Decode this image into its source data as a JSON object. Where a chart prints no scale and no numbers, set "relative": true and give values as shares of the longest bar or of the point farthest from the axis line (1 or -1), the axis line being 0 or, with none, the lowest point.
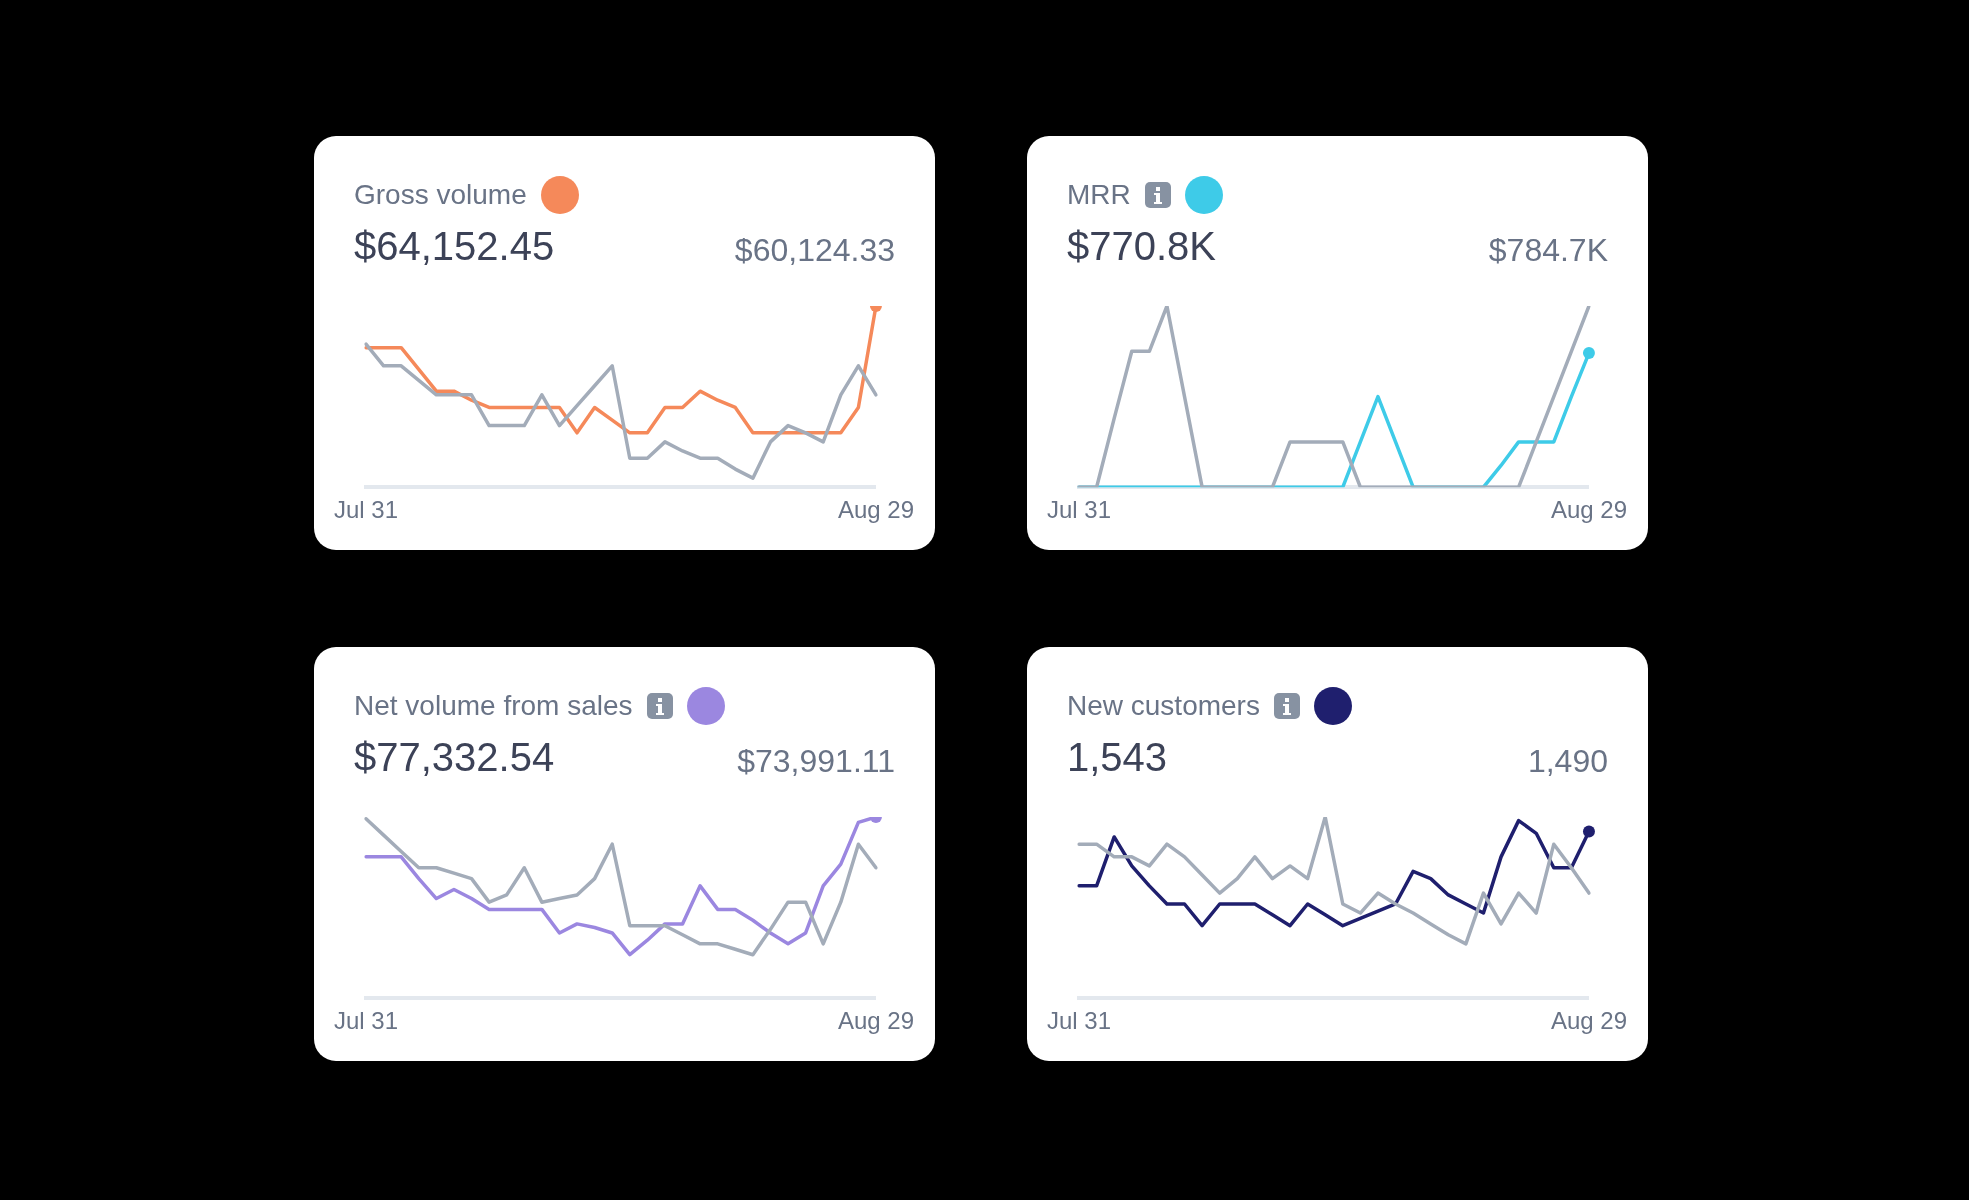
{
  "chart_data": [
    {
      "type": "line",
      "title": "Gross volume",
      "subtitle": "$64,152.45",
      "annotations": [
        "$60,124.33"
      ],
      "relative": true,
      "legend": false,
      "grid": false,
      "tick_labels": "x",
      "categories": [
        "Jul 31",
        null,
        null,
        null,
        null,
        null,
        null,
        null,
        null,
        null,
        null,
        null,
        null,
        null,
        null,
        null,
        null,
        null,
        null,
        null,
        null,
        null,
        null,
        null,
        null,
        null,
        null,
        null,
        null,
        "Aug 29"
      ],
      "series": [
        {
          "color": "#a3acb9",
          "values": [
            0.79,
            0.67,
            0.67,
            0.59,
            0.51,
            0.51,
            0.51,
            0.34,
            0.34,
            0.34,
            0.51,
            0.34,
            0.45,
            0.56,
            0.67,
            0.16,
            0.16,
            0.25,
            0.2,
            0.16,
            0.16,
            0.1,
            0.05,
            0.25,
            0.34,
            0.3,
            0.25,
            0.51,
            0.67,
            0.51
          ]
        },
        {
          "type": "scatter",
          "color": "#f5895a",
          "marker": "circle",
          "x": [
            "Aug 29"
          ],
          "values": [
            1
          ]
        },
        {
          "color": "#f5895a",
          "values": [
            0.77,
            0.77,
            0.77,
            0.65,
            0.53,
            0.53,
            0.48,
            0.44,
            0.44,
            0.44,
            0.44,
            0.44,
            0.3,
            0.44,
            0.37,
            0.3,
            0.3,
            0.44,
            0.44,
            0.53,
            0.48,
            0.44,
            0.3,
            0.3,
            0.3,
            0.3,
            0.3,
            0.3,
            0.44,
            1
          ]
        }
      ]
    },
    {
      "type": "line",
      "title": "MRR",
      "subtitle": "$770.8K",
      "annotations": [
        "$784.7K"
      ],
      "relative": true,
      "legend": false,
      "grid": false,
      "tick_labels": "x",
      "categories": [
        "Jul 31",
        null,
        null,
        null,
        null,
        null,
        null,
        null,
        null,
        null,
        null,
        null,
        null,
        null,
        null,
        null,
        null,
        null,
        null,
        null,
        null,
        null,
        null,
        null,
        null,
        null,
        null,
        null,
        null,
        "Aug 29"
      ],
      "series": [
        {
          "color": "#a3acb9",
          "values": [
            0,
            0,
            0.38,
            0.75,
            0.75,
            1,
            0.5,
            0,
            0,
            0,
            0,
            0,
            0.25,
            0.25,
            0.25,
            0.25,
            0,
            0,
            0,
            0,
            0,
            0,
            0,
            0,
            0,
            0,
            0.25,
            0.5,
            0.75,
            1
          ]
        },
        {
          "type": "scatter",
          "color": "#3ecbe8",
          "marker": "circle",
          "x": [
            "Aug 29"
          ],
          "values": [
            0.74
          ]
        },
        {
          "color": "#3ecbe8",
          "values": [
            0,
            0,
            0,
            0,
            0,
            0,
            0,
            0,
            0,
            0,
            0,
            0,
            0,
            0,
            0,
            0,
            0.25,
            0.5,
            0.25,
            0,
            0,
            0,
            0,
            0,
            0.12,
            0.25,
            0.25,
            0.25,
            0.5,
            0.74
          ]
        }
      ]
    },
    {
      "type": "line",
      "title": "Net volume from sales",
      "subtitle": "$77,332.54",
      "annotations": [
        "$73,991.11"
      ],
      "relative": true,
      "legend": false,
      "grid": false,
      "tick_labels": "x",
      "categories": [
        "Jul 31",
        null,
        null,
        null,
        null,
        null,
        null,
        null,
        null,
        null,
        null,
        null,
        null,
        null,
        null,
        null,
        null,
        null,
        null,
        null,
        null,
        null,
        null,
        null,
        null,
        null,
        null,
        null,
        null,
        "Aug 29"
      ],
      "series": [
        {
          "color": "#a3acb9",
          "values": [
            0.99,
            0.9,
            0.81,
            0.72,
            0.72,
            0.69,
            0.66,
            0.53,
            0.57,
            0.72,
            0.53,
            0.55,
            0.57,
            0.66,
            0.85,
            0.4,
            0.4,
            0.4,
            0.35,
            0.3,
            0.3,
            0.27,
            0.24,
            0.38,
            0.53,
            0.53,
            0.3,
            0.53,
            0.85,
            0.72
          ]
        },
        {
          "type": "scatter",
          "color": "#9b87e0",
          "marker": "circle",
          "x": [
            "Aug 29"
          ],
          "values": [
            1
          ]
        },
        {
          "color": "#9b87e0",
          "values": [
            0.78,
            0.78,
            0.78,
            0.66,
            0.55,
            0.6,
            0.55,
            0.49,
            0.49,
            0.49,
            0.49,
            0.36,
            0.41,
            0.39,
            0.36,
            0.24,
            0.32,
            0.41,
            0.41,
            0.62,
            0.49,
            0.49,
            0.43,
            0.36,
            0.3,
            0.36,
            0.62,
            0.74,
            0.97,
            1
          ]
        }
      ]
    },
    {
      "type": "line",
      "title": "New customers",
      "subtitle": "1,543",
      "annotations": [
        "1,490"
      ],
      "relative": true,
      "legend": false,
      "grid": false,
      "tick_labels": "x",
      "categories": [
        "Jul 31",
        null,
        null,
        null,
        null,
        null,
        null,
        null,
        null,
        null,
        null,
        null,
        null,
        null,
        null,
        null,
        null,
        null,
        null,
        null,
        null,
        null,
        null,
        null,
        null,
        null,
        null,
        null,
        null,
        "Aug 29"
      ],
      "series": [
        {
          "color": "#a3acb9",
          "values": [
            0.85,
            0.85,
            0.78,
            0.78,
            0.73,
            0.85,
            0.78,
            0.68,
            0.58,
            0.66,
            0.78,
            0.66,
            0.73,
            0.66,
            1,
            0.52,
            0.47,
            0.58,
            0.52,
            0.47,
            0.41,
            0.35,
            0.3,
            0.58,
            0.41,
            0.58,
            0.47,
            0.85,
            0.72,
            0.58
          ]
        },
        {
          "type": "scatter",
          "color": "#1f1f6e",
          "marker": "circle",
          "x": [
            "Aug 29"
          ],
          "values": [
            0.92
          ]
        },
        {
          "color": "#1f1f6e",
          "values": [
            0.62,
            0.62,
            0.89,
            0.73,
            0.62,
            0.52,
            0.52,
            0.4,
            0.52,
            0.52,
            0.52,
            0.46,
            0.4,
            0.52,
            0.46,
            0.4,
            0.44,
            0.48,
            0.52,
            0.7,
            0.66,
            0.57,
            0.52,
            0.47,
            0.78,
            0.98,
            0.91,
            0.72,
            0.72,
            0.92
          ]
        }
      ]
    }
  ]
}
